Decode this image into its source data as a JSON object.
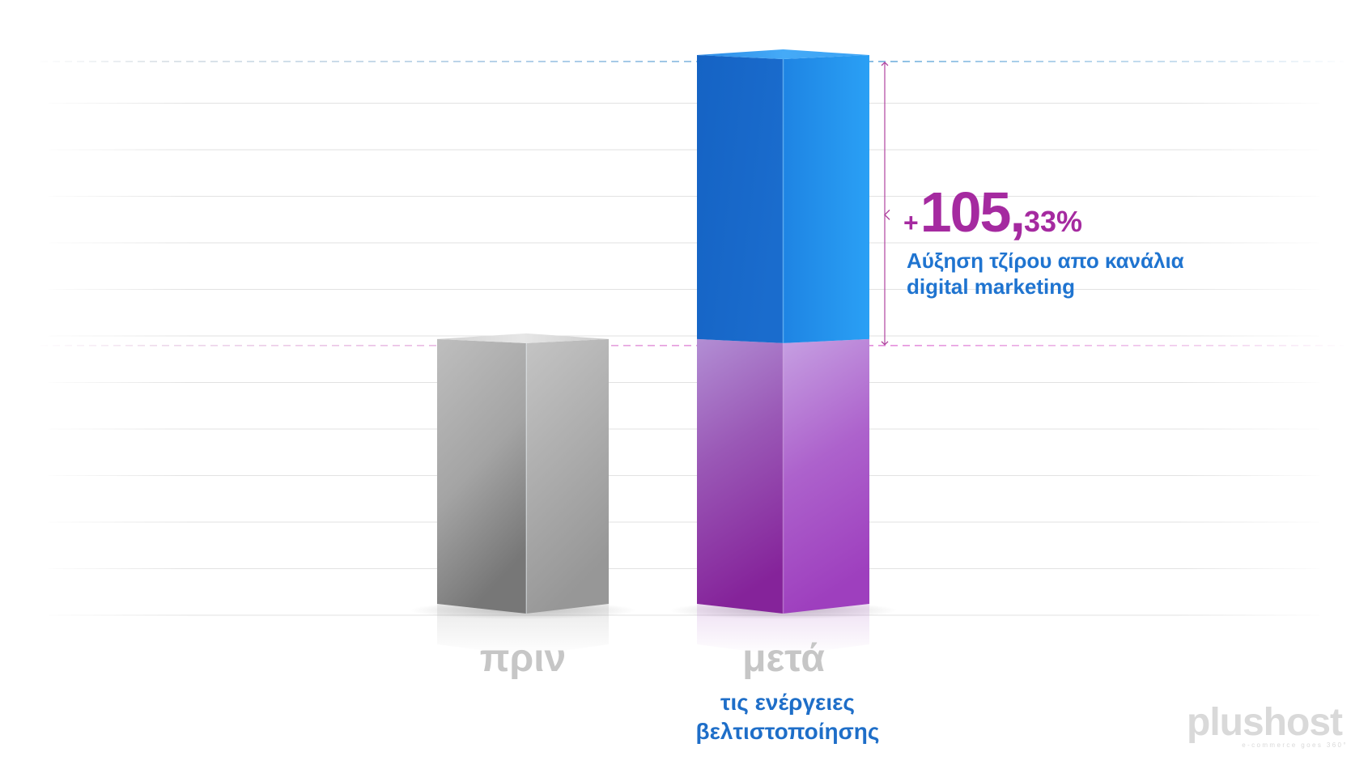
{
  "chart_data": {
    "type": "bar",
    "categories": [
      "πριν",
      "μετά"
    ],
    "values": [
      100,
      205.33
    ],
    "annotation": {
      "plus": "+",
      "major": "105,",
      "minor": "33%",
      "caption_lines": [
        "Αύξηση τζίρου απο κανάλια",
        "digital marketing"
      ]
    },
    "category_sublabels": {
      "after": [
        "τις ενέργειες",
        "βελτιστοποίησης"
      ]
    },
    "grid": true,
    "legend": "none"
  },
  "logo": {
    "name": "plushost",
    "tagline": "e-commerce goes 360°"
  },
  "colors": {
    "before_bar": "#a6a6a6",
    "after_upper": "#1e7fdc",
    "after_lower": "#9a3fb8",
    "accent": "#a52aa0",
    "caption": "#1f74d0",
    "category_label": "#c6c6c6",
    "sublabel": "#1e6ec8",
    "logo": "#d9d9d9",
    "grid": "#e2e2e2",
    "ref_after": "#5ba4d9",
    "ref_before": "#e07ad6"
  }
}
